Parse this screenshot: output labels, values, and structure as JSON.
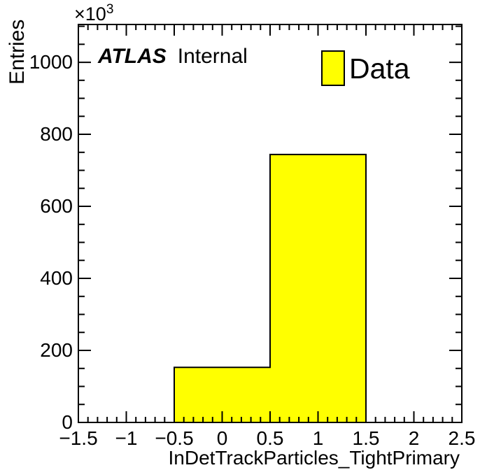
{
  "chart_data": {
    "type": "bar",
    "title": "",
    "xlabel": "InDetTrackParticles_TightPrimary",
    "ylabel": "Entries",
    "y_axis_multiplier": {
      "prefix": "×10",
      "exponent": "3"
    },
    "xlim": [
      -1.5,
      2.5
    ],
    "ylim_thousands": [
      0,
      1105
    ],
    "grid": false,
    "bins": [
      {
        "x_low": -0.5,
        "x_high": 0.5,
        "entries_thousands": 153
      },
      {
        "x_low": 0.5,
        "x_high": 1.5,
        "entries_thousands": 744
      }
    ],
    "x_ticks": [
      {
        "value": -1.5,
        "label": "−1.5"
      },
      {
        "value": -1.0,
        "label": "−1"
      },
      {
        "value": -0.5,
        "label": "−0.5"
      },
      {
        "value": 0.0,
        "label": "0"
      },
      {
        "value": 0.5,
        "label": "0.5"
      },
      {
        "value": 1.0,
        "label": "1"
      },
      {
        "value": 1.5,
        "label": "1.5"
      },
      {
        "value": 2.0,
        "label": "2"
      },
      {
        "value": 2.5,
        "label": "2.5"
      }
    ],
    "x_minor_step": 0.1,
    "y_ticks": [
      {
        "value_thousands": 0,
        "label": "0"
      },
      {
        "value_thousands": 200,
        "label": "200"
      },
      {
        "value_thousands": 400,
        "label": "400"
      },
      {
        "value_thousands": 600,
        "label": "600"
      },
      {
        "value_thousands": 800,
        "label": "800"
      },
      {
        "value_thousands": 1000,
        "label": "1000"
      }
    ],
    "y_minor_step_thousands": 50,
    "legend_position": "top-right"
  },
  "annotations": {
    "experiment": "ATLAS",
    "status": "Internal"
  },
  "legend": {
    "entries": [
      {
        "label": "Data",
        "fill": "#ffff00",
        "border": "#000000"
      }
    ]
  },
  "colors": {
    "hist_fill": "#ffff00",
    "hist_line": "#000000",
    "axis": "#000000",
    "background": "#ffffff"
  }
}
